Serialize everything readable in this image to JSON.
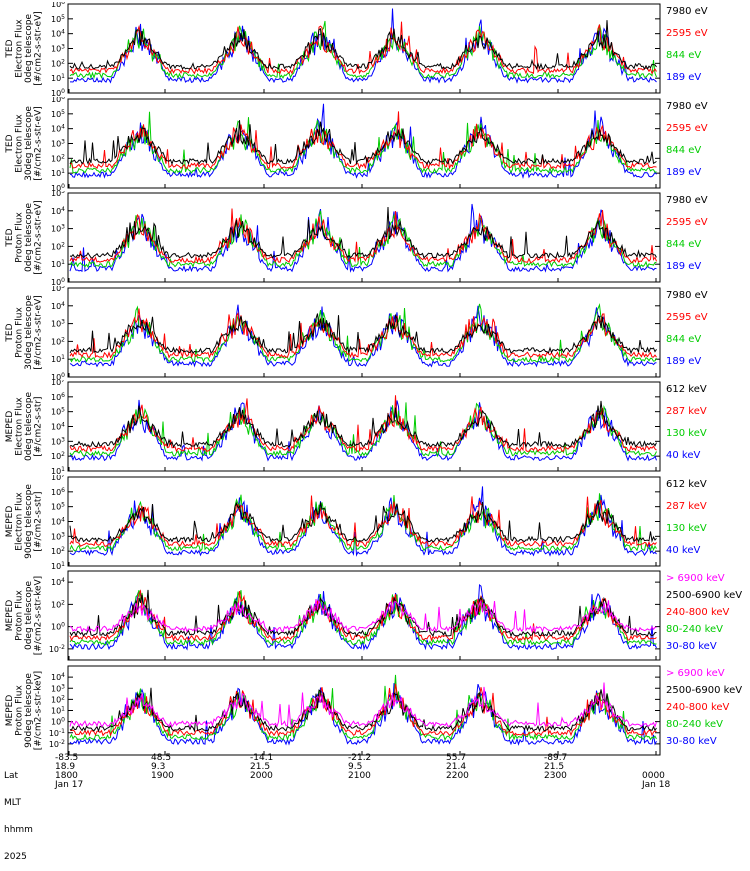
{
  "chart_data": [
    {
      "type": "line",
      "ylabel": [
        "TED",
        "Electron Flux",
        "0deg telescope",
        "[#/cm2-s-str-eV]"
      ],
      "ylim_exp": [
        0,
        6
      ],
      "ticks": [
        "10^6",
        "10^5",
        "10^4",
        "10^3",
        "10^2",
        "10^1",
        "10^0"
      ],
      "legend": [
        {
          "label": "7980 eV",
          "color": "#000000"
        },
        {
          "label": "2595 eV",
          "color": "#ff0000"
        },
        {
          "label": "844 eV",
          "color": "#00cc00"
        },
        {
          "label": "189 eV",
          "color": "#0000ff"
        }
      ]
    },
    {
      "type": "line",
      "ylabel": [
        "TED",
        "Electron Flux",
        "30deg telescope",
        "[#/cm2-s-str-eV]"
      ],
      "ylim_exp": [
        0,
        6
      ],
      "ticks": [
        "10^6",
        "10^5",
        "10^4",
        "10^3",
        "10^2",
        "10^1",
        "10^0"
      ],
      "legend": [
        {
          "label": "7980 eV",
          "color": "#000000"
        },
        {
          "label": "2595 eV",
          "color": "#ff0000"
        },
        {
          "label": "844 eV",
          "color": "#00cc00"
        },
        {
          "label": "189 eV",
          "color": "#0000ff"
        }
      ]
    },
    {
      "type": "line",
      "ylabel": [
        "TED",
        "Proton Flux",
        "0deg telescope",
        "[#/cm2-s-str-eV]"
      ],
      "ylim_exp": [
        0,
        5
      ],
      "ticks": [
        "10^5",
        "10^4",
        "10^3",
        "10^2",
        "10^1",
        "10^0"
      ],
      "legend": [
        {
          "label": "7980 eV",
          "color": "#000000"
        },
        {
          "label": "2595 eV",
          "color": "#ff0000"
        },
        {
          "label": "844 eV",
          "color": "#00cc00"
        },
        {
          "label": "189 eV",
          "color": "#0000ff"
        }
      ]
    },
    {
      "type": "line",
      "ylabel": [
        "TED",
        "Proton Flux",
        "30deg telescope",
        "[#/cm2-s-str-eV]"
      ],
      "ylim_exp": [
        0,
        5
      ],
      "ticks": [
        "10^5",
        "10^4",
        "10^3",
        "10^2",
        "10^1",
        "10^0"
      ],
      "legend": [
        {
          "label": "7980 eV",
          "color": "#000000"
        },
        {
          "label": "2595 eV",
          "color": "#ff0000"
        },
        {
          "label": "844 eV",
          "color": "#00cc00"
        },
        {
          "label": "189 eV",
          "color": "#0000ff"
        }
      ]
    },
    {
      "type": "line",
      "ylabel": [
        "MEPED",
        "Electron Flux",
        "0deg telescope",
        "[#/cm2-s-str]"
      ],
      "ylim_exp": [
        1,
        7
      ],
      "ticks": [
        "10^7",
        "10^6",
        "10^5",
        "10^4",
        "10^3",
        "10^2",
        "10^1"
      ],
      "legend": [
        {
          "label": "612 keV",
          "color": "#000000"
        },
        {
          "label": "287 keV",
          "color": "#ff0000"
        },
        {
          "label": "130 keV",
          "color": "#00cc00"
        },
        {
          "label": "40 keV",
          "color": "#0000ff"
        }
      ]
    },
    {
      "type": "line",
      "ylabel": [
        "MEPED",
        "Electron Flux",
        "90deg telescope",
        "[#/cm2-s-str]"
      ],
      "ylim_exp": [
        1,
        7
      ],
      "ticks": [
        "10^7",
        "10^6",
        "10^5",
        "10^4",
        "10^3",
        "10^2",
        "10^1"
      ],
      "legend": [
        {
          "label": "612 keV",
          "color": "#000000"
        },
        {
          "label": "287 keV",
          "color": "#ff0000"
        },
        {
          "label": "130 keV",
          "color": "#00cc00"
        },
        {
          "label": "40 keV",
          "color": "#0000ff"
        }
      ]
    },
    {
      "type": "line",
      "ylabel": [
        "MEPED",
        "Proton Flux",
        "0deg telescope",
        "[#/cm2-s-str-keV]"
      ],
      "ylim_exp": [
        -3,
        5
      ],
      "ticks": [
        "10^4",
        "10^2",
        "10^0",
        "10^-2"
      ],
      "legend": [
        {
          "label": "> 6900 keV",
          "color": "#ff00ff"
        },
        {
          "label": "2500-6900 keV",
          "color": "#000000"
        },
        {
          "label": "240-800 keV",
          "color": "#ff0000"
        },
        {
          "label": "80-240 keV",
          "color": "#00cc00"
        },
        {
          "label": "30-80 keV",
          "color": "#0000ff"
        }
      ]
    },
    {
      "type": "line",
      "ylabel": [
        "MEPED",
        "Proton Flux",
        "90deg telescope",
        "[#/cm2-s-str-keV]"
      ],
      "ylim_exp": [
        -3,
        5
      ],
      "ticks": [
        "10^4",
        "10^3",
        "10^2",
        "10^1",
        "10^0",
        "10^-1",
        "10^-2"
      ],
      "legend": [
        {
          "label": "> 6900 keV",
          "color": "#ff00ff"
        },
        {
          "label": "2500-6900 keV",
          "color": "#000000"
        },
        {
          "label": "240-800 keV",
          "color": "#ff0000"
        },
        {
          "label": "80-240 keV",
          "color": "#00cc00"
        },
        {
          "label": "30-80 keV",
          "color": "#0000ff"
        }
      ]
    }
  ],
  "x_axis": {
    "row_labels": [
      "Lat",
      "MLT",
      "hhmm",
      "2025"
    ],
    "columns": [
      {
        "lat": "-83.5",
        "mlt": "18.9",
        "hhmm": "1800",
        "date": "Jan 17"
      },
      {
        "lat": "48.5",
        "mlt": "9.3",
        "hhmm": "1900",
        "date": ""
      },
      {
        "lat": "-14.1",
        "mlt": "21.5",
        "hhmm": "2000",
        "date": ""
      },
      {
        "lat": "-21.2",
        "mlt": "9.5",
        "hhmm": "2100",
        "date": ""
      },
      {
        "lat": "55.7",
        "mlt": "21.4",
        "hhmm": "2200",
        "date": ""
      },
      {
        "lat": "-89.7",
        "mlt": "21.5",
        "hhmm": "2300",
        "date": ""
      },
      {
        "lat": "",
        "mlt": "",
        "hhmm": "0000",
        "date": "Jan 18"
      }
    ]
  }
}
